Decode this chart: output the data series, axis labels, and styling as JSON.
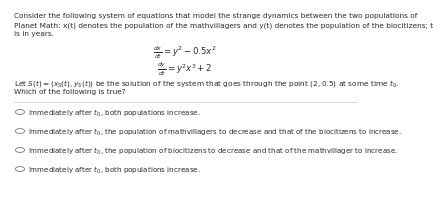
{
  "bg_color": "#ffffff",
  "text_color": "#2a2a2a",
  "line1": "Consider the following system of equations that model the strange dynamics between the two populations of",
  "line2": "Planet Math: x(t) denotes the population of the mathvillagers and y(t) denotes the population of the biocitizens; t",
  "line3": "is in years.",
  "eq1": "$\\frac{dx}{dt} = y^2 - 0.5x^2$",
  "eq2": "$\\frac{dy}{dt} = y^2x^3 + 2$",
  "let_line": "Let $S(t) = (x_S(t), y_S(t))$ be the solution of the system that goes through the point $(2, 0.5)$ at some time $t_0$.",
  "which_line": "Which of the following is true?",
  "options": [
    "Immediately after $t_0$, both populations increase.",
    "Immediately after $t_0$, the population of mathvillagers to decrease and that of the biocitizens to increase.",
    "Immediately after $t_0$, the population of biocitizens to decrease and that of the mathvillager to increase.",
    "Immediately after $t_0$, both populations increase."
  ],
  "font_size_body": 5.3,
  "font_size_eq": 6.2,
  "font_size_option": 5.1,
  "separator_color": "#cccccc",
  "circle_color": "#888888"
}
